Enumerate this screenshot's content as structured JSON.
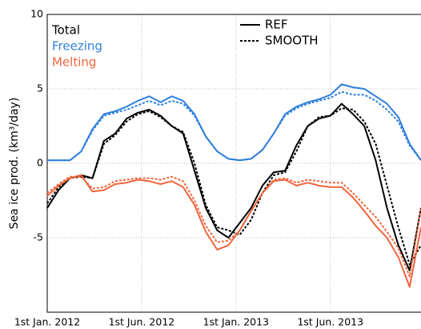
{
  "chart_data": {
    "type": "line",
    "y_label": "Sea ice prod. (km³/day)",
    "x": [
      0,
      0.12,
      0.24,
      0.36,
      0.48,
      0.6,
      0.72,
      0.84,
      0.96,
      1.08,
      1.2,
      1.32,
      1.44,
      1.56,
      1.68,
      1.8,
      1.92,
      2.04,
      2.16,
      2.28,
      2.4,
      2.52,
      2.64,
      2.76,
      2.88,
      3.0,
      3.12,
      3.24,
      3.36,
      3.48,
      3.6,
      3.72,
      3.84,
      3.96
    ],
    "xlim": [
      0,
      3.96
    ],
    "xticks": [
      {
        "value": 0,
        "label": "1st Jan. 2012"
      },
      {
        "value": 1,
        "label": "1st Jun. 2012"
      },
      {
        "value": 2,
        "label": "1st Jan. 2013"
      },
      {
        "value": 3,
        "label": "1st Jun. 2013"
      }
    ],
    "ylim": [
      -10,
      10
    ],
    "yticks": [
      -5,
      0,
      5,
      10
    ],
    "grid": true,
    "line_styles": [
      {
        "name": "REF",
        "dash": "solid"
      },
      {
        "name": "SMOOTH",
        "dash": "dotted"
      }
    ],
    "series": [
      {
        "name": "Total",
        "color": "#000000",
        "values": [
          [
            -3,
            -1.8,
            -1,
            -0.8,
            -1,
            1.5,
            2.0,
            3,
            3.4,
            3.6,
            3.2,
            2.5,
            2.0,
            -0.5,
            -3,
            -4.5,
            -5,
            -4,
            -3,
            -1.5,
            -0.6,
            -0.5,
            1.2,
            2.5,
            3,
            3.2,
            4.0,
            3.3,
            2.5,
            0.2,
            -3,
            -5.5,
            -7.2,
            -3
          ],
          [
            -2.7,
            -1.6,
            -1,
            -0.9,
            -1,
            1.3,
            1.9,
            2.8,
            3.3,
            3.5,
            3.1,
            2.5,
            2.1,
            0,
            -2.8,
            -4.3,
            -4.5,
            -4.8,
            -3.8,
            -2.0,
            -0.8,
            -0.6,
            0.8,
            2.5,
            3.1,
            3.2,
            3.7,
            3.6,
            2.8,
            1.3,
            -1.5,
            -4.3,
            -6.8,
            -5.5
          ]
        ]
      },
      {
        "name": "Freezing",
        "color": "#2e7fdd",
        "values": [
          [
            0.2,
            0.2,
            0.2,
            0.8,
            2.3,
            3.3,
            3.5,
            3.8,
            4.2,
            4.5,
            4.1,
            4.5,
            4.2,
            3.3,
            1.8,
            0.8,
            0.3,
            0.2,
            0.3,
            0.9,
            2.0,
            3.3,
            3.8,
            4.1,
            4.3,
            4.6,
            5.3,
            5.1,
            5.0,
            4.5,
            4.0,
            3.1,
            1.3,
            0.2
          ],
          [
            0.2,
            0.2,
            0.2,
            0.8,
            2.2,
            3.2,
            3.4,
            3.6,
            3.9,
            4.2,
            3.9,
            4.2,
            4.0,
            3.2,
            1.8,
            0.8,
            0.3,
            0.2,
            0.3,
            0.9,
            2.0,
            3.2,
            3.7,
            4.0,
            4.2,
            4.4,
            4.8,
            4.6,
            4.6,
            4.2,
            3.6,
            2.8,
            1.2,
            0.2
          ]
        ]
      },
      {
        "name": "Melting",
        "color": "#f0643c",
        "values": [
          [
            -2.2,
            -1.5,
            -1,
            -0.8,
            -1.9,
            -1.8,
            -1.4,
            -1.3,
            -1.1,
            -1.2,
            -1.4,
            -1.2,
            -1.6,
            -2.8,
            -4.6,
            -5.8,
            -5.5,
            -4.5,
            -3.2,
            -2.0,
            -1.2,
            -1.1,
            -1.5,
            -1.3,
            -1.5,
            -1.6,
            -1.6,
            -2.3,
            -3.2,
            -4.2,
            -5,
            -6.3,
            -8.3,
            -4.3
          ],
          [
            -2.0,
            -1.4,
            -0.9,
            -0.9,
            -1.7,
            -1.6,
            -1.2,
            -1.1,
            -1.0,
            -1.0,
            -1.1,
            -0.9,
            -1.2,
            -2.5,
            -4.2,
            -5.3,
            -5.2,
            -4.5,
            -3.2,
            -2.0,
            -1.1,
            -1.0,
            -1.3,
            -1.1,
            -1.2,
            -1.3,
            -1.3,
            -2.0,
            -2.8,
            -3.6,
            -4.6,
            -5.7,
            -7.6,
            -3.0
          ]
        ]
      }
    ]
  }
}
